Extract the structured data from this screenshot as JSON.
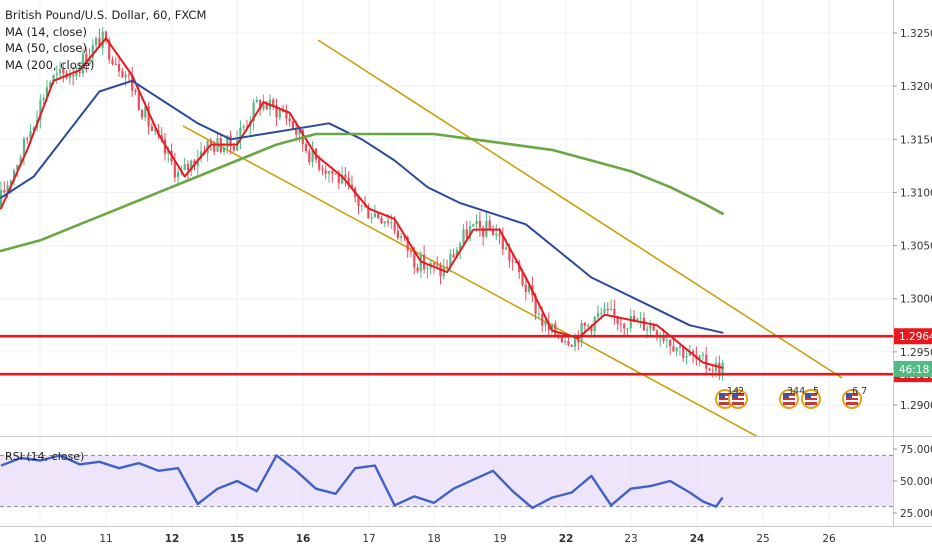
{
  "chart_data": [
    {
      "type": "candlestick",
      "title": "British Pound/U.S. Dollar, 60, FXCM",
      "indicators": [
        "MA (14, close)",
        "MA (50, close)",
        "MA (200, close)"
      ],
      "ylim": [
        1.2875,
        1.3262
      ],
      "x_ticks": [
        "10",
        "11",
        "12",
        "15",
        "16",
        "17",
        "18",
        "19",
        "22",
        "23",
        "24",
        "25",
        "26"
      ],
      "y_ticks": [
        "1.32500",
        "1.32000",
        "1.31500",
        "1.31000",
        "1.30500",
        "1.30000",
        "1.29500",
        "1.29000"
      ],
      "price_labels": [
        {
          "text": "1.29647",
          "value": 1.29647,
          "kind": "level"
        },
        {
          "text": "1.29290",
          "value": 1.2929,
          "kind": "level"
        },
        {
          "text": "46:18",
          "value": 1.2933,
          "kind": "countdown"
        }
      ],
      "horizontal_levels": [
        1.29647,
        1.2929
      ],
      "series": [
        {
          "name": "MA (14, close)",
          "color": "#e8191e",
          "x": [
            0,
            8,
            16,
            24,
            32,
            40,
            48,
            56,
            64,
            72,
            80,
            88,
            96,
            104,
            112,
            120,
            128,
            136,
            144,
            152,
            160,
            168,
            176,
            184,
            192,
            200,
            208,
            214,
            220
          ],
          "y": [
            1.3085,
            1.314,
            1.3205,
            1.3215,
            1.3245,
            1.321,
            1.3155,
            1.3115,
            1.3145,
            1.3145,
            1.3185,
            1.3175,
            1.3135,
            1.3115,
            1.3085,
            1.3075,
            1.3035,
            1.3025,
            1.3065,
            1.3065,
            1.302,
            1.297,
            1.2963,
            1.2985,
            1.298,
            1.2975,
            1.2955,
            1.294,
            1.2935
          ]
        },
        {
          "name": "MA (50, close)",
          "color": "#2b4a9e",
          "x": [
            0,
            10,
            20,
            30,
            40,
            50,
            60,
            70,
            80,
            90,
            100,
            110,
            120,
            130,
            140,
            150,
            160,
            170,
            180,
            190,
            200,
            210,
            220
          ],
          "y": [
            1.3095,
            1.3115,
            1.3155,
            1.3195,
            1.3205,
            1.3185,
            1.3165,
            1.315,
            1.3155,
            1.316,
            1.3165,
            1.315,
            1.313,
            1.3105,
            1.309,
            1.308,
            1.307,
            1.3045,
            1.302,
            1.3005,
            1.299,
            1.2975,
            1.2968
          ]
        },
        {
          "name": "MA (200, close)",
          "color": "#6aa742",
          "x": [
            0,
            12,
            24,
            36,
            48,
            60,
            72,
            84,
            96,
            108,
            120,
            132,
            144,
            156,
            168,
            180,
            192,
            204,
            214,
            220
          ],
          "y": [
            1.3045,
            1.3055,
            1.307,
            1.3085,
            1.31,
            1.3115,
            1.313,
            1.3145,
            1.3155,
            1.3155,
            1.3155,
            1.3155,
            1.315,
            1.3145,
            1.314,
            1.313,
            1.312,
            1.3105,
            1.309,
            1.308
          ]
        }
      ]
    },
    {
      "type": "line",
      "title": "RSI (14, close)",
      "ylim": [
        20,
        78
      ],
      "y_ticks": [
        "75.0000",
        "50.0000",
        "25.0000"
      ],
      "band": [
        30,
        70
      ],
      "series": [
        {
          "name": "RSI (14, close)",
          "color": "#3f62c4",
          "x": [
            0,
            6,
            12,
            18,
            24,
            30,
            36,
            42,
            48,
            54,
            60,
            66,
            72,
            78,
            84,
            90,
            96,
            102,
            108,
            114,
            120,
            126,
            132,
            138,
            144,
            150,
            156,
            162,
            168,
            174,
            180,
            186,
            192,
            198,
            204,
            210,
            214,
            218,
            220
          ],
          "y": [
            62,
            68,
            66,
            70,
            63,
            65,
            60,
            64,
            58,
            60,
            32,
            44,
            50,
            42,
            70,
            58,
            44,
            40,
            60,
            62,
            31,
            38,
            33,
            44,
            51,
            58,
            42,
            29,
            37,
            41,
            54,
            31,
            44,
            46,
            50,
            41,
            34,
            30,
            37
          ]
        }
      ]
    }
  ]
}
